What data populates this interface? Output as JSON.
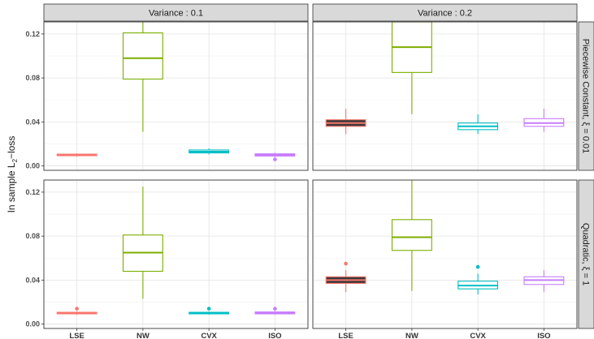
{
  "chart_data": {
    "type": "boxplot",
    "ylabel_main": "In sample L",
    "ylabel_sub": "2",
    "ylabel_tail": "−loss",
    "categories": [
      "LSE",
      "NW",
      "CVX",
      "ISO"
    ],
    "colors": {
      "LSE": "#F8766D",
      "NW": "#7CAE00",
      "CVX": "#00BFC4",
      "ISO": "#C77CFF"
    },
    "yticks": [
      0.0,
      0.04,
      0.08,
      0.12
    ],
    "ytick_labels": [
      "0.00",
      "0.04",
      "0.08",
      "0.12"
    ],
    "ylim": [
      -0.004,
      0.131
    ],
    "col_strips": [
      "Variance : 0.1",
      "Variance : 0.2"
    ],
    "row_strips": [
      {
        "main": "Piecewise Constant,  ξ = 0.01"
      },
      {
        "main": "Quadratic,  ξ = 1"
      }
    ],
    "panels": [
      {
        "row": 0,
        "col": 0,
        "boxes": [
          {
            "cat": "LSE",
            "min": 0.0085,
            "q1": 0.0093,
            "median": 0.01,
            "q3": 0.0107,
            "max": 0.0115,
            "outliers": []
          },
          {
            "cat": "NW",
            "min": 0.031,
            "q1": 0.079,
            "median": 0.098,
            "q3": 0.121,
            "max": 0.131,
            "outliers": []
          },
          {
            "cat": "CVX",
            "min": 0.0105,
            "q1": 0.0118,
            "median": 0.013,
            "q3": 0.0145,
            "max": 0.016,
            "outliers": []
          },
          {
            "cat": "ISO",
            "min": 0.008,
            "q1": 0.009,
            "median": 0.01,
            "q3": 0.011,
            "max": 0.012,
            "outliers": [
              0.006
            ]
          }
        ]
      },
      {
        "row": 0,
        "col": 1,
        "boxes": [
          {
            "cat": "LSE",
            "min": 0.029,
            "q1": 0.036,
            "median": 0.039,
            "q3": 0.042,
            "max": 0.052,
            "outliers": []
          },
          {
            "cat": "NW",
            "min": 0.047,
            "q1": 0.085,
            "median": 0.108,
            "q3": 0.131,
            "max": 0.131,
            "outliers": []
          },
          {
            "cat": "CVX",
            "min": 0.029,
            "q1": 0.033,
            "median": 0.036,
            "q3": 0.039,
            "max": 0.047,
            "outliers": []
          },
          {
            "cat": "ISO",
            "min": 0.031,
            "q1": 0.036,
            "median": 0.039,
            "q3": 0.043,
            "max": 0.052,
            "outliers": []
          }
        ]
      },
      {
        "row": 1,
        "col": 0,
        "boxes": [
          {
            "cat": "LSE",
            "min": 0.0085,
            "q1": 0.0093,
            "median": 0.01,
            "q3": 0.0107,
            "max": 0.0115,
            "outliers": [
              0.014
            ]
          },
          {
            "cat": "NW",
            "min": 0.023,
            "q1": 0.048,
            "median": 0.065,
            "q3": 0.081,
            "max": 0.125,
            "outliers": []
          },
          {
            "cat": "CVX",
            "min": 0.0085,
            "q1": 0.0093,
            "median": 0.01,
            "q3": 0.0107,
            "max": 0.0115,
            "outliers": [
              0.014
            ]
          },
          {
            "cat": "ISO",
            "min": 0.0085,
            "q1": 0.0093,
            "median": 0.01,
            "q3": 0.011,
            "max": 0.012,
            "outliers": [
              0.014
            ]
          }
        ]
      },
      {
        "row": 1,
        "col": 1,
        "boxes": [
          {
            "cat": "LSE",
            "min": 0.029,
            "q1": 0.037,
            "median": 0.04,
            "q3": 0.043,
            "max": 0.049,
            "outliers": [
              0.055
            ]
          },
          {
            "cat": "NW",
            "min": 0.03,
            "q1": 0.067,
            "median": 0.079,
            "q3": 0.095,
            "max": 0.131,
            "outliers": []
          },
          {
            "cat": "CVX",
            "min": 0.027,
            "q1": 0.032,
            "median": 0.035,
            "q3": 0.039,
            "max": 0.046,
            "outliers": [
              0.052
            ]
          },
          {
            "cat": "ISO",
            "min": 0.029,
            "q1": 0.036,
            "median": 0.04,
            "q3": 0.043,
            "max": 0.049,
            "outliers": []
          }
        ]
      }
    ],
    "grid": true,
    "legend": "none"
  }
}
